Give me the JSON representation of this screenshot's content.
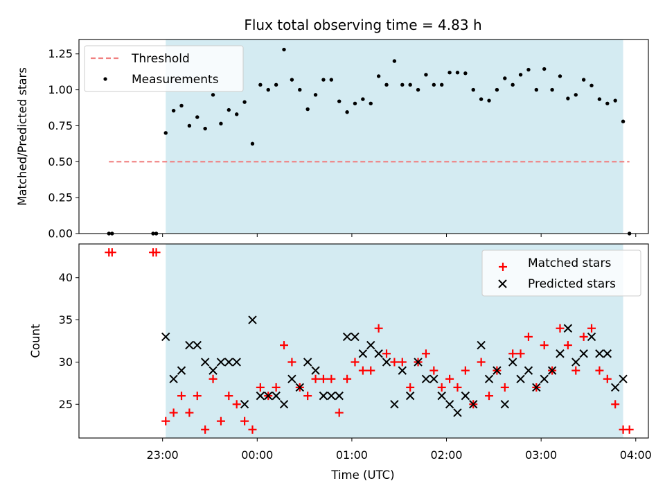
{
  "chart_data": [
    {
      "type": "scatter",
      "title": "Flux total observing time = 4.83 h",
      "xlabel": "",
      "ylabel": "Matched/Predicted stars",
      "xlim": [
        "22:07",
        "04:08"
      ],
      "ylim": [
        0,
        1.35
      ],
      "yticks": [
        0.0,
        0.25,
        0.5,
        0.75,
        1.0,
        1.25
      ],
      "ytick_labels": [
        "0.00",
        "0.25",
        "0.50",
        "0.75",
        "1.00",
        "1.25"
      ],
      "shaded_span": {
        "start": "23:02",
        "end": "03:52",
        "color": "#add8e6"
      },
      "legend_position": "upper-left",
      "threshold": {
        "name": "Threshold",
        "y": 0.5,
        "x_start": "22:26",
        "x_end": "03:56",
        "color": "#f08080"
      },
      "series": [
        {
          "name": "Measurements",
          "color": "#000000",
          "marker": "dot",
          "points": [
            [
              "22:26",
              0
            ],
            [
              "22:28",
              0
            ],
            [
              "22:54",
              0
            ],
            [
              "22:56",
              0
            ],
            [
              "23:02",
              0.7
            ],
            [
              "23:07",
              0.855
            ],
            [
              "23:12",
              0.89
            ],
            [
              "23:17",
              0.75
            ],
            [
              "23:22",
              0.81
            ],
            [
              "23:27",
              0.73
            ],
            [
              "23:32",
              0.965
            ],
            [
              "23:37",
              0.765
            ],
            [
              "23:42",
              0.86
            ],
            [
              "23:47",
              0.83
            ],
            [
              "23:52",
              0.915
            ],
            [
              "23:57",
              0.625
            ],
            [
              "00:02",
              1.035
            ],
            [
              "00:07",
              1.0
            ],
            [
              "00:12",
              1.035
            ],
            [
              "00:17",
              1.28
            ],
            [
              "00:22",
              1.07
            ],
            [
              "00:27",
              1.0
            ],
            [
              "00:32",
              0.865
            ],
            [
              "00:37",
              0.965
            ],
            [
              "00:42",
              1.07
            ],
            [
              "00:47",
              1.07
            ],
            [
              "00:52",
              0.92
            ],
            [
              "00:57",
              0.845
            ],
            [
              "01:02",
              0.905
            ],
            [
              "01:07",
              0.935
            ],
            [
              "01:12",
              0.905
            ],
            [
              "01:17",
              1.095
            ],
            [
              "01:22",
              1.035
            ],
            [
              "01:27",
              1.2
            ],
            [
              "01:32",
              1.035
            ],
            [
              "01:37",
              1.035
            ],
            [
              "01:42",
              1.0
            ],
            [
              "01:47",
              1.105
            ],
            [
              "01:52",
              1.035
            ],
            [
              "01:57",
              1.035
            ],
            [
              "02:02",
              1.12
            ],
            [
              "02:07",
              1.12
            ],
            [
              "02:12",
              1.115
            ],
            [
              "02:17",
              1.0
            ],
            [
              "02:22",
              0.935
            ],
            [
              "02:27",
              0.925
            ],
            [
              "02:32",
              1.0
            ],
            [
              "02:37",
              1.08
            ],
            [
              "02:42",
              1.035
            ],
            [
              "02:47",
              1.105
            ],
            [
              "02:52",
              1.14
            ],
            [
              "02:57",
              1.0
            ],
            [
              "03:02",
              1.145
            ],
            [
              "03:07",
              1.0
            ],
            [
              "03:12",
              1.095
            ],
            [
              "03:17",
              0.94
            ],
            [
              "03:22",
              0.965
            ],
            [
              "03:27",
              1.07
            ],
            [
              "03:32",
              1.03
            ],
            [
              "03:37",
              0.935
            ],
            [
              "03:42",
              0.905
            ],
            [
              "03:47",
              0.925
            ],
            [
              "03:52",
              0.78
            ],
            [
              "03:56",
              0
            ]
          ]
        }
      ]
    },
    {
      "type": "scatter",
      "title": "",
      "xlabel": "Time (UTC)",
      "ylabel": "Count",
      "xlim": [
        "22:07",
        "04:08"
      ],
      "ylim": [
        21,
        44
      ],
      "xticks": [
        "23:00",
        "00:00",
        "01:00",
        "02:00",
        "03:00",
        "04:00"
      ],
      "xtick_labels": [
        "23:00",
        "00:00",
        "01:00",
        "02:00",
        "03:00",
        "04:00"
      ],
      "yticks": [
        25,
        30,
        35,
        40
      ],
      "ytick_labels": [
        "25",
        "30",
        "35",
        "40"
      ],
      "shaded_span": {
        "start": "23:02",
        "end": "03:52",
        "color": "#add8e6"
      },
      "legend_position": "upper-right",
      "series": [
        {
          "name": "Matched stars",
          "color": "#ff0000",
          "marker": "plus",
          "points": [
            [
              "22:26",
              43
            ],
            [
              "22:28",
              43
            ],
            [
              "22:54",
              43
            ],
            [
              "22:56",
              43
            ],
            [
              "23:02",
              23
            ],
            [
              "23:07",
              24
            ],
            [
              "23:12",
              26
            ],
            [
              "23:17",
              24
            ],
            [
              "23:22",
              26
            ],
            [
              "23:27",
              22
            ],
            [
              "23:32",
              28
            ],
            [
              "23:37",
              23
            ],
            [
              "23:42",
              26
            ],
            [
              "23:47",
              25
            ],
            [
              "23:52",
              23
            ],
            [
              "23:57",
              22
            ],
            [
              "00:02",
              27
            ],
            [
              "00:07",
              26
            ],
            [
              "00:12",
              27
            ],
            [
              "00:17",
              32
            ],
            [
              "00:22",
              30
            ],
            [
              "00:27",
              27
            ],
            [
              "00:32",
              26
            ],
            [
              "00:37",
              28
            ],
            [
              "00:42",
              28
            ],
            [
              "00:47",
              28
            ],
            [
              "00:52",
              24
            ],
            [
              "00:57",
              28
            ],
            [
              "01:02",
              30
            ],
            [
              "01:07",
              29
            ],
            [
              "01:12",
              29
            ],
            [
              "01:17",
              34
            ],
            [
              "01:22",
              31
            ],
            [
              "01:27",
              30
            ],
            [
              "01:32",
              30
            ],
            [
              "01:37",
              27
            ],
            [
              "01:42",
              30
            ],
            [
              "01:47",
              31
            ],
            [
              "01:52",
              29
            ],
            [
              "01:57",
              27
            ],
            [
              "02:02",
              28
            ],
            [
              "02:07",
              27
            ],
            [
              "02:12",
              29
            ],
            [
              "02:17",
              25
            ],
            [
              "02:22",
              30
            ],
            [
              "02:27",
              26
            ],
            [
              "02:32",
              29
            ],
            [
              "02:37",
              27
            ],
            [
              "02:42",
              31
            ],
            [
              "02:47",
              31
            ],
            [
              "02:52",
              33
            ],
            [
              "02:57",
              27
            ],
            [
              "03:02",
              32
            ],
            [
              "03:07",
              29
            ],
            [
              "03:12",
              34
            ],
            [
              "03:17",
              32
            ],
            [
              "03:22",
              29
            ],
            [
              "03:27",
              33
            ],
            [
              "03:32",
              34
            ],
            [
              "03:37",
              29
            ],
            [
              "03:42",
              28
            ],
            [
              "03:47",
              25
            ],
            [
              "03:52",
              22
            ],
            [
              "03:56",
              22
            ]
          ]
        },
        {
          "name": "Predicted stars",
          "color": "#000000",
          "marker": "x",
          "points": [
            [
              "23:02",
              33
            ],
            [
              "23:07",
              28
            ],
            [
              "23:12",
              29
            ],
            [
              "23:17",
              32
            ],
            [
              "23:22",
              32
            ],
            [
              "23:27",
              30
            ],
            [
              "23:32",
              29
            ],
            [
              "23:37",
              30
            ],
            [
              "23:42",
              30
            ],
            [
              "23:47",
              30
            ],
            [
              "23:52",
              25
            ],
            [
              "23:57",
              35
            ],
            [
              "00:02",
              26
            ],
            [
              "00:07",
              26
            ],
            [
              "00:12",
              26
            ],
            [
              "00:17",
              25
            ],
            [
              "00:22",
              28
            ],
            [
              "00:27",
              27
            ],
            [
              "00:32",
              30
            ],
            [
              "00:37",
              29
            ],
            [
              "00:42",
              26
            ],
            [
              "00:47",
              26
            ],
            [
              "00:52",
              26
            ],
            [
              "00:57",
              33
            ],
            [
              "01:02",
              33
            ],
            [
              "01:07",
              31
            ],
            [
              "01:12",
              32
            ],
            [
              "01:17",
              31
            ],
            [
              "01:22",
              30
            ],
            [
              "01:27",
              25
            ],
            [
              "01:32",
              29
            ],
            [
              "01:37",
              26
            ],
            [
              "01:42",
              30
            ],
            [
              "01:47",
              28
            ],
            [
              "01:52",
              28
            ],
            [
              "01:57",
              26
            ],
            [
              "02:02",
              25
            ],
            [
              "02:07",
              24
            ],
            [
              "02:12",
              26
            ],
            [
              "02:17",
              25
            ],
            [
              "02:22",
              32
            ],
            [
              "02:27",
              28
            ],
            [
              "02:32",
              29
            ],
            [
              "02:37",
              25
            ],
            [
              "02:42",
              30
            ],
            [
              "02:47",
              28
            ],
            [
              "02:52",
              29
            ],
            [
              "02:57",
              27
            ],
            [
              "03:02",
              28
            ],
            [
              "03:07",
              29
            ],
            [
              "03:12",
              31
            ],
            [
              "03:17",
              34
            ],
            [
              "03:22",
              30
            ],
            [
              "03:27",
              31
            ],
            [
              "03:32",
              33
            ],
            [
              "03:37",
              31
            ],
            [
              "03:42",
              31
            ],
            [
              "03:47",
              27
            ],
            [
              "03:52",
              28
            ]
          ]
        }
      ]
    }
  ]
}
